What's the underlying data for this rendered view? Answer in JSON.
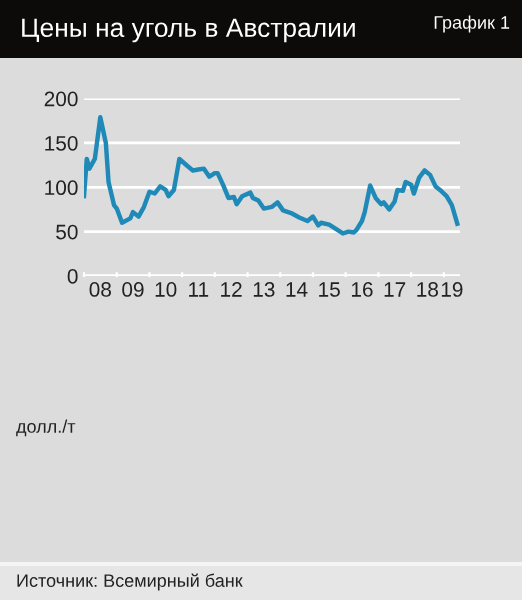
{
  "chart_data": {
    "type": "line",
    "title": "Цены на уголь в Австралии",
    "annotations": [
      "График 1",
      "долл./т",
      "Источник: Всемирный банк"
    ],
    "series": [
      {
        "color": "#1f8ab8",
        "x": [
          "2008-01",
          "2008-02",
          "2008-03",
          "2008-05",
          "2008-07",
          "2008-09",
          "2008-10",
          "2008-12",
          "2009-01",
          "2009-03",
          "2009-06",
          "2009-07",
          "2009-09",
          "2009-11",
          "2010-01",
          "2010-03",
          "2010-05",
          "2010-07",
          "2010-08",
          "2010-10",
          "2010-12",
          "2011-03",
          "2011-05",
          "2011-07",
          "2011-09",
          "2011-11",
          "2012-01",
          "2012-02",
          "2012-04",
          "2012-06",
          "2012-08",
          "2012-09",
          "2012-11",
          "2013-02",
          "2013-03",
          "2013-05",
          "2013-07",
          "2013-10",
          "2013-12",
          "2014-02",
          "2014-05",
          "2014-08",
          "2014-11",
          "2015-01",
          "2015-03",
          "2015-04",
          "2015-07",
          "2015-10",
          "2015-12",
          "2016-02",
          "2016-04",
          "2016-05",
          "2016-07",
          "2016-08",
          "2016-10",
          "2016-12",
          "2017-02",
          "2017-03",
          "2017-05",
          "2017-07",
          "2017-08",
          "2017-10",
          "2017-11",
          "2018-01",
          "2018-02",
          "2018-04",
          "2018-06",
          "2018-08",
          "2018-10",
          "2018-12",
          "2019-02",
          "2019-04",
          "2019-06"
        ],
        "values": [
          90,
          132,
          121,
          132,
          179,
          150,
          106,
          80,
          76,
          60,
          65,
          72,
          67,
          78,
          95,
          93,
          101,
          97,
          90,
          97,
          132,
          124,
          119,
          120,
          121,
          112,
          116,
          116,
          103,
          88,
          89,
          81,
          90,
          94,
          88,
          85,
          76,
          78,
          83,
          74,
          71,
          66,
          62,
          67,
          57,
          60,
          58,
          52,
          48,
          50,
          49,
          52,
          62,
          72,
          102,
          88,
          81,
          83,
          75,
          84,
          97,
          96,
          106,
          103,
          93,
          111,
          119,
          114,
          101,
          96,
          90,
          80,
          59
        ]
      }
    ],
    "xlim": [
      "2008-01",
      "2019-07"
    ],
    "ylim": [
      0,
      200
    ],
    "yticks": [
      0,
      50,
      100,
      150,
      200
    ],
    "xticks": [
      {
        "value": "2008-07",
        "label": "08"
      },
      {
        "value": "2009-07",
        "label": "09"
      },
      {
        "value": "2010-07",
        "label": "10"
      },
      {
        "value": "2011-07",
        "label": "11"
      },
      {
        "value": "2012-07",
        "label": "12"
      },
      {
        "value": "2013-07",
        "label": "13"
      },
      {
        "value": "2014-07",
        "label": "14"
      },
      {
        "value": "2015-07",
        "label": "15"
      },
      {
        "value": "2016-07",
        "label": "16"
      },
      {
        "value": "2017-07",
        "label": "17"
      },
      {
        "value": "2018-07",
        "label": "18"
      },
      {
        "value": "2019-04",
        "label": "19"
      }
    ],
    "grid": "y"
  }
}
